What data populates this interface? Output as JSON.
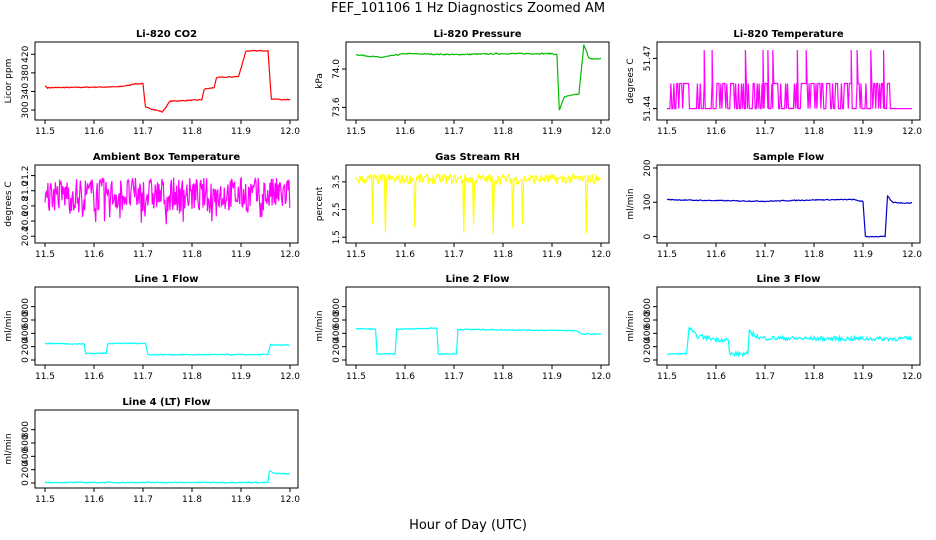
{
  "figure": {
    "title": "FEF_101106  1 Hz Diagnostics Zoomed AM",
    "xlabel": "Hour of Day (UTC)"
  },
  "chart_data": [
    {
      "type": "line",
      "title": "Li-820 CO2",
      "ylabel": "Licor ppm",
      "color": "#ff0000",
      "xlim": [
        11.5,
        12.0
      ],
      "ylim": [
        285,
        440
      ],
      "xticks": [
        11.5,
        11.6,
        11.7,
        11.8,
        11.9,
        12.0
      ],
      "yticks": [
        "300",
        "340",
        "380",
        "420"
      ],
      "series": [
        {
          "x": [
            11.5,
            11.505,
            11.65,
            11.675,
            11.678,
            11.7,
            11.705,
            11.74,
            11.755,
            11.82,
            11.825,
            11.845,
            11.85,
            11.895,
            11.91,
            11.955,
            11.962,
            11.99,
            12.0
          ],
          "y": [
            352,
            348,
            350,
            354,
            356,
            357,
            306,
            296,
            319,
            322,
            345,
            348,
            370,
            372,
            427,
            428,
            324,
            322,
            323
          ]
        }
      ]
    },
    {
      "type": "line",
      "title": "Li-820 Pressure",
      "ylabel": "kPa",
      "color": "#00bb00",
      "xlim": [
        11.5,
        12.0
      ],
      "ylim": [
        73.5,
        74.25
      ],
      "xticks": [
        11.5,
        11.6,
        11.7,
        11.8,
        11.9,
        12.0
      ],
      "yticks": [
        "73.6",
        "74.0"
      ],
      "series": [
        {
          "x": [
            11.5,
            11.55,
            11.6,
            11.7,
            11.8,
            11.9,
            11.91,
            11.915,
            11.925,
            11.955,
            11.965,
            11.975,
            11.985,
            12.0
          ],
          "y": [
            74.15,
            74.12,
            74.16,
            74.15,
            74.16,
            74.16,
            74.15,
            73.57,
            73.71,
            73.74,
            74.25,
            74.12,
            74.1,
            74.11
          ]
        }
      ]
    },
    {
      "type": "line",
      "title": "Li-820 Temperature",
      "ylabel": "degrees C",
      "color": "#ff00ff",
      "xlim": [
        11.5,
        12.0
      ],
      "ylim": [
        51.435,
        51.478
      ],
      "xticks": [
        11.5,
        11.6,
        11.7,
        11.8,
        11.9,
        12.0
      ],
      "yticks": [
        "51.44",
        "51.47"
      ],
      "note_type": "stepped noisy",
      "series": [
        {
          "x": [
            11.5,
            11.95,
            12.0
          ],
          "y": [
            51.44,
            51.45,
            51.44
          ]
        }
      ]
    },
    {
      "type": "line",
      "title": "Ambient Box Temperature",
      "ylabel": "degrees C",
      "color": "#ff00ff",
      "xlim": [
        11.5,
        12.0
      ],
      "ylim": [
        20.35,
        21.3
      ],
      "xticks": [
        11.5,
        11.6,
        11.7,
        11.8,
        11.9,
        12.0
      ],
      "yticks": [
        "20.4",
        "20.6",
        "20.8",
        "21.0",
        "21.2"
      ],
      "series": [
        {
          "x": [
            11.5,
            12.0
          ],
          "y": [
            20.95,
            20.95
          ]
        }
      ]
    },
    {
      "type": "line",
      "title": "Gas Stream RH",
      "ylabel": "percent",
      "color": "#ffff00",
      "xlim": [
        11.5,
        12.0
      ],
      "ylim": [
        1.4,
        4.0
      ],
      "xticks": [
        11.5,
        11.6,
        11.7,
        11.8,
        11.9,
        12.0
      ],
      "yticks": [
        "1.5",
        "2.5",
        "3.5"
      ],
      "series": [
        {
          "x": [
            11.5,
            12.0
          ],
          "y": [
            3.6,
            3.6
          ]
        }
      ]
    },
    {
      "type": "line",
      "title": "Sample Flow",
      "ylabel": "ml/min",
      "color": "#0000cc",
      "xlim": [
        11.5,
        12.0
      ],
      "ylim": [
        -10,
        200
      ],
      "xticks": [
        11.5,
        11.6,
        11.7,
        11.8,
        11.9,
        12.0
      ],
      "yticks": [
        "0",
        "100",
        "200"
      ],
      "series": [
        {
          "x": [
            11.5,
            11.55,
            11.6,
            11.7,
            11.8,
            11.88,
            11.9,
            11.905,
            11.945,
            11.95,
            11.96,
            11.98,
            12.0
          ],
          "y": [
            108,
            106,
            105,
            103,
            107,
            108,
            102,
            0,
            0,
            118,
            100,
            98,
            98
          ]
        }
      ]
    },
    {
      "type": "line",
      "title": "Line 1 Flow",
      "ylabel": "ml/min",
      "color": "#00ffff",
      "xlim": [
        11.5,
        12.0
      ],
      "ylim": [
        -30,
        1050
      ],
      "xticks": [
        11.5,
        11.6,
        11.7,
        11.8,
        11.9,
        12.0
      ],
      "yticks": [
        "0",
        "200",
        "400",
        "600",
        "800"
      ],
      "series": [
        {
          "x": [
            11.5,
            11.58,
            11.583,
            11.625,
            11.628,
            11.705,
            11.71,
            11.955,
            11.96,
            12.0
          ],
          "y": [
            250,
            240,
            100,
            100,
            250,
            250,
            80,
            80,
            230,
            220
          ]
        }
      ]
    },
    {
      "type": "line",
      "title": "Line 2 Flow",
      "ylabel": "ml/min",
      "color": "#00ffff",
      "xlim": [
        11.5,
        12.0
      ],
      "ylim": [
        -30,
        1050
      ],
      "xticks": [
        11.5,
        11.6,
        11.7,
        11.8,
        11.9,
        12.0
      ],
      "yticks": [
        "0",
        "200",
        "400",
        "600",
        "800"
      ],
      "series": [
        {
          "x": [
            11.5,
            11.54,
            11.543,
            11.58,
            11.583,
            11.665,
            11.668,
            11.705,
            11.708,
            11.95,
            11.96,
            12.0
          ],
          "y": [
            470,
            460,
            90,
            90,
            460,
            480,
            90,
            90,
            460,
            440,
            390,
            390
          ]
        }
      ]
    },
    {
      "type": "line",
      "title": "Line 3 Flow",
      "ylabel": "ml/min",
      "color": "#00ffff",
      "xlim": [
        11.5,
        12.0
      ],
      "ylim": [
        -30,
        1050
      ],
      "xticks": [
        11.5,
        11.6,
        11.7,
        11.8,
        11.9,
        12.0
      ],
      "yticks": [
        "0",
        "200",
        "400",
        "600",
        "800"
      ],
      "series": [
        {
          "x": [
            11.5,
            11.54,
            11.545,
            11.56,
            11.6,
            11.625,
            11.628,
            11.665,
            11.668,
            11.69,
            11.8,
            11.9,
            12.0
          ],
          "y": [
            90,
            95,
            480,
            360,
            310,
            300,
            90,
            90,
            420,
            330,
            320,
            320,
            320
          ]
        }
      ]
    },
    {
      "type": "line",
      "title": "Line 4 (LT) Flow",
      "ylabel": "ml/min",
      "color": "#00ffff",
      "xlim": [
        11.5,
        12.0
      ],
      "ylim": [
        -30,
        1050
      ],
      "xticks": [
        11.5,
        11.6,
        11.7,
        11.8,
        11.9,
        12.0
      ],
      "yticks": [
        "0",
        "200",
        "400",
        "600",
        "800"
      ],
      "series": [
        {
          "x": [
            11.5,
            11.955,
            11.958,
            11.97,
            12.0
          ],
          "y": [
            8,
            8,
            180,
            140,
            140
          ]
        }
      ]
    }
  ]
}
